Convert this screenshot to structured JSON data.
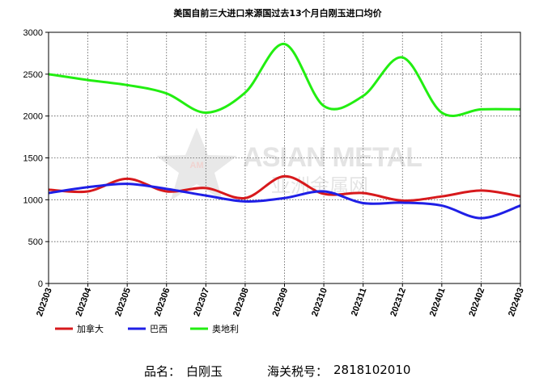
{
  "chart_data": {
    "type": "line",
    "title": "美国自前三大进口来源国过去13个月白刚玉进口均价",
    "categories": [
      "202303",
      "202304",
      "202305",
      "202306",
      "202307",
      "202308",
      "202309",
      "202310",
      "202311",
      "202312",
      "202401",
      "202402",
      "202403"
    ],
    "ylim": [
      0,
      3000
    ],
    "yticks": [
      0,
      500,
      1000,
      1500,
      2000,
      2500,
      3000
    ],
    "grid": true,
    "legend_position": "bottom",
    "series": [
      {
        "name": "加拿大",
        "color": "#d7191c",
        "values": [
          1120,
          1100,
          1250,
          1100,
          1140,
          1020,
          1280,
          1070,
          1080,
          990,
          1040,
          1110,
          1040
        ]
      },
      {
        "name": "巴西",
        "color": "#1f1fe6",
        "values": [
          1080,
          1150,
          1190,
          1130,
          1050,
          980,
          1020,
          1100,
          960,
          965,
          930,
          780,
          930
        ]
      },
      {
        "name": "奥地利",
        "color": "#22ee11",
        "values": [
          2500,
          2430,
          2370,
          2270,
          2040,
          2280,
          2860,
          2120,
          2240,
          2700,
          2040,
          2080,
          2080
        ]
      }
    ]
  },
  "watermark": {
    "text_en": "ASIAN METAL",
    "text_cn": "亚洲金属网",
    "badge": "AM"
  },
  "footer": {
    "product_label": "品名：",
    "product_value": "白刚玉",
    "hs_label": "海关税号：",
    "hs_value": "2818102010"
  }
}
